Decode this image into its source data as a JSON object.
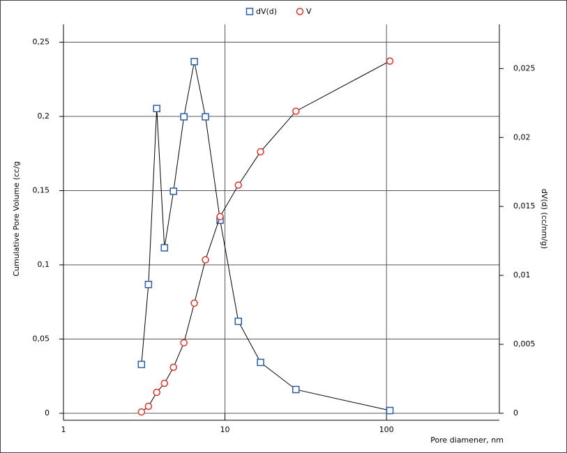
{
  "chart_data": {
    "type": "line",
    "x_label": "Pore diamener, nm",
    "y_label": "Cumulative Pore Volume (cc/g",
    "y2_label": "dV(d) (cc/nm/g)",
    "x": [
      3.04,
      3.36,
      3.78,
      4.22,
      4.8,
      5.57,
      6.46,
      7.57,
      9.33,
      12.1,
      16.6,
      27.5,
      105
    ],
    "xlim": [
      1,
      500
    ],
    "xticks": [
      1,
      10,
      100
    ],
    "xlog": true,
    "ylim": [
      0,
      0.262
    ],
    "yticks": [
      0,
      {
        "value": 0.05,
        "label": "0,05"
      },
      {
        "value": 0.1,
        "label": "0,1"
      },
      {
        "value": 0.15,
        "label": "0,15"
      },
      {
        "value": 0.2,
        "label": "0,2"
      },
      {
        "value": 0.25,
        "label": "0,25"
      }
    ],
    "y2lim": [
      0,
      0.0282
    ],
    "y2ticks": [
      0,
      {
        "value": 0.005,
        "label": "0,005"
      },
      {
        "value": 0.01,
        "label": "0,01"
      },
      {
        "value": 0.015,
        "label": "0,015"
      },
      {
        "value": 0.02,
        "label": "0,02"
      },
      {
        "value": 0.025,
        "label": "0,025"
      }
    ],
    "grid": true,
    "series": [
      {
        "name": "dV(d)",
        "color": "#2a5ba8",
        "marker": "square",
        "axis": "y2",
        "values": [
          0.00354,
          0.00934,
          0.0221,
          0.012,
          0.0161,
          0.0215,
          0.0255,
          0.0215,
          0.014,
          0.00667,
          0.00369,
          0.00172,
          0.0002
        ]
      },
      {
        "name": "V",
        "color": "#d9342b",
        "marker": "circle",
        "axis": "y",
        "values": [
          0.0009,
          0.0047,
          0.0141,
          0.0202,
          0.031,
          0.0475,
          0.0742,
          0.1034,
          0.1325,
          0.1537,
          0.1762,
          0.2035,
          0.2373
        ]
      }
    ]
  }
}
